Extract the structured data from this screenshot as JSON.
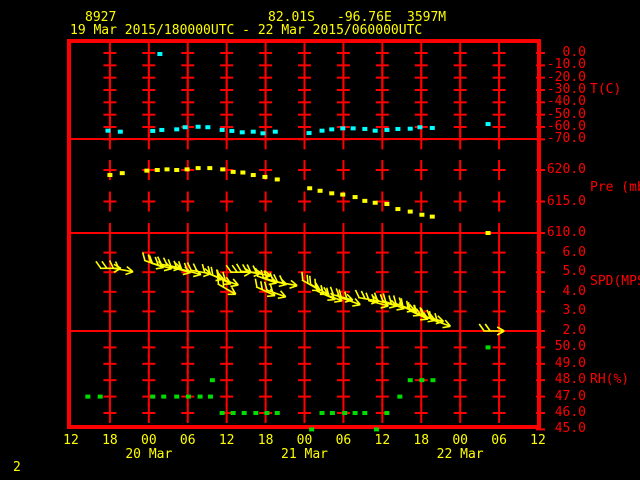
{
  "page_number": "2",
  "header": {
    "station_id": "8927",
    "latitude": "82.01S",
    "longitude": "-96.76E",
    "elevation": "3597M",
    "time_range": "19 Mar 2015/180000UTC - 22 Mar 2015/060000UTC"
  },
  "colors": {
    "background": "#000000",
    "grid": "#ff0000",
    "text_primary": "#ffff00",
    "temperature": "#00ffff",
    "pressure": "#ffff00",
    "wind": "#ffff00",
    "humidity": "#00dd00"
  },
  "chart_data": {
    "type": "scatter",
    "x_axis": {
      "hours_from_start": [
        0,
        6,
        12,
        18,
        24,
        30,
        36,
        42,
        48,
        54,
        60,
        66,
        72
      ],
      "hour_labels": [
        "12",
        "18",
        "00",
        "06",
        "12",
        "18",
        "00",
        "06",
        "12",
        "18",
        "00",
        "06",
        "12"
      ],
      "date_labels": [
        {
          "label": "20 Mar",
          "at_hour": 12
        },
        {
          "label": "21 Mar",
          "at_hour": 36
        },
        {
          "label": "22 Mar",
          "at_hour": 60
        }
      ]
    },
    "panels": [
      {
        "id": "temperature",
        "unit_label": "T(C)",
        "unit_label_at": -30,
        "ylim": [
          -70,
          10
        ],
        "tick_values": [
          0,
          -10,
          -20,
          -30,
          -40,
          -50,
          -60,
          -70
        ],
        "tick_labels": [
          "0.0",
          "-10.0",
          "-20.0",
          "-30.0",
          "-40.0",
          "-50.0",
          "-60.0",
          "-70.0"
        ],
        "grid_cross_values": [
          0,
          -10,
          -20,
          -30,
          -40,
          -50,
          -60,
          -70
        ],
        "color_key": "temperature",
        "points": [
          [
            5.7,
            -63.0
          ],
          [
            7.6,
            -63.8
          ],
          [
            12.6,
            -63.2
          ],
          [
            13.7,
            -0.8
          ],
          [
            14.0,
            -62.4
          ],
          [
            16.3,
            -61.9
          ],
          [
            17.6,
            -60.2
          ],
          [
            19.6,
            -59.8
          ],
          [
            21.1,
            -60.2
          ],
          [
            23.3,
            -62.4
          ],
          [
            24.8,
            -63.2
          ],
          [
            26.4,
            -64.3
          ],
          [
            28.1,
            -63.8
          ],
          [
            29.6,
            -65.1
          ],
          [
            31.5,
            -63.8
          ],
          [
            36.7,
            -64.9
          ],
          [
            38.7,
            -63.0
          ],
          [
            40.2,
            -61.9
          ],
          [
            41.9,
            -61.1
          ],
          [
            43.5,
            -61.1
          ],
          [
            45.3,
            -61.6
          ],
          [
            46.9,
            -63.0
          ],
          [
            48.7,
            -62.4
          ],
          [
            50.4,
            -61.6
          ],
          [
            52.3,
            -61.4
          ],
          [
            53.8,
            -60.2
          ],
          [
            55.7,
            -60.8
          ],
          [
            64.3,
            -57.6
          ]
        ]
      },
      {
        "id": "pressure",
        "unit_label": "Pre (mb)",
        "unit_label_at": 617.2,
        "ylim": [
          610,
          625
        ],
        "tick_values": [
          620,
          615,
          610
        ],
        "tick_labels": [
          "620.0",
          "615.0",
          "610.0"
        ],
        "grid_cross_values": [
          620,
          615,
          610
        ],
        "color_key": "pressure",
        "points": [
          [
            6.0,
            619.2
          ],
          [
            7.9,
            619.5
          ],
          [
            11.7,
            619.9
          ],
          [
            13.3,
            620.0
          ],
          [
            14.8,
            620.1
          ],
          [
            16.3,
            620.0
          ],
          [
            17.9,
            620.1
          ],
          [
            19.6,
            620.3
          ],
          [
            21.4,
            620.3
          ],
          [
            23.4,
            620.1
          ],
          [
            25.0,
            619.7
          ],
          [
            26.5,
            619.6
          ],
          [
            28.1,
            619.2
          ],
          [
            29.9,
            618.9
          ],
          [
            31.8,
            618.5
          ],
          [
            36.8,
            617.1
          ],
          [
            38.4,
            616.7
          ],
          [
            40.2,
            616.3
          ],
          [
            41.9,
            616.1
          ],
          [
            43.8,
            615.7
          ],
          [
            45.3,
            615.1
          ],
          [
            46.9,
            614.8
          ],
          [
            48.7,
            614.6
          ],
          [
            50.4,
            613.8
          ],
          [
            52.3,
            613.4
          ],
          [
            54.1,
            612.9
          ],
          [
            55.7,
            612.6
          ],
          [
            64.3,
            610.0
          ]
        ]
      },
      {
        "id": "wind_speed",
        "unit_label": "SPD(MPS)",
        "unit_label_at": 4.5,
        "ylim": [
          2,
          7
        ],
        "tick_values": [
          6,
          5,
          4,
          3,
          2
        ],
        "tick_labels": [
          "6.0",
          "5.0",
          "4.0",
          "3.0",
          "2.0"
        ],
        "grid_cross_values": [
          6,
          5,
          4,
          3,
          2
        ],
        "color_key": "wind",
        "barbs": [
          [
            6.3,
            5.2,
            0
          ],
          [
            8.2,
            5.1,
            10
          ],
          [
            13.0,
            5.4,
            20
          ],
          [
            14.2,
            5.3,
            15
          ],
          [
            15.6,
            5.3,
            10
          ],
          [
            17.1,
            5.1,
            15
          ],
          [
            18.7,
            5.0,
            15
          ],
          [
            20.2,
            5.0,
            10
          ],
          [
            22.2,
            4.8,
            20
          ],
          [
            23.4,
            4.6,
            25
          ],
          [
            24.2,
            4.1,
            30
          ],
          [
            24.5,
            4.5,
            20
          ],
          [
            26.4,
            5.0,
            0
          ],
          [
            27.9,
            5.0,
            5
          ],
          [
            29.4,
            4.9,
            10
          ],
          [
            30.2,
            4.0,
            25
          ],
          [
            30.4,
            4.6,
            20
          ],
          [
            31.8,
            3.9,
            20
          ],
          [
            31.9,
            4.5,
            15
          ],
          [
            33.5,
            4.4,
            10
          ],
          [
            37.2,
            4.3,
            30
          ],
          [
            38.4,
            4.1,
            30
          ],
          [
            39.5,
            3.8,
            25
          ],
          [
            40.5,
            3.7,
            20
          ],
          [
            42.1,
            3.7,
            15
          ],
          [
            43.3,
            3.5,
            20
          ],
          [
            46.1,
            3.6,
            10
          ],
          [
            47.6,
            3.4,
            15
          ],
          [
            48.9,
            3.4,
            15
          ],
          [
            50.1,
            3.3,
            20
          ],
          [
            51.7,
            3.2,
            20
          ],
          [
            52.7,
            3.0,
            25
          ],
          [
            53.8,
            2.8,
            25
          ],
          [
            54.9,
            2.7,
            20
          ],
          [
            56.1,
            2.6,
            15
          ],
          [
            57.2,
            2.4,
            20
          ],
          [
            65.4,
            2.0,
            0
          ]
        ]
      },
      {
        "id": "relative_humidity",
        "unit_label": "RH(%)",
        "unit_label_at": 48,
        "ylim": [
          45,
          51
        ],
        "tick_values": [
          50,
          49,
          48,
          47,
          46,
          45
        ],
        "tick_labels": [
          "50.0",
          "49.0",
          "48.0",
          "47.0",
          "46.0",
          "45.0"
        ],
        "grid_cross_values": [
          50,
          49,
          48,
          47,
          46
        ],
        "color_key": "humidity",
        "points": [
          [
            2.6,
            47
          ],
          [
            4.5,
            47
          ],
          [
            12.6,
            47
          ],
          [
            14.3,
            47
          ],
          [
            16.3,
            47
          ],
          [
            18.1,
            47
          ],
          [
            19.9,
            47
          ],
          [
            21.5,
            47
          ],
          [
            21.8,
            48
          ],
          [
            23.3,
            46
          ],
          [
            25.0,
            46
          ],
          [
            26.7,
            46
          ],
          [
            28.5,
            46
          ],
          [
            30.2,
            46
          ],
          [
            31.8,
            46
          ],
          [
            37.1,
            45
          ],
          [
            38.7,
            46
          ],
          [
            40.3,
            46
          ],
          [
            42.2,
            46
          ],
          [
            43.8,
            46
          ],
          [
            45.3,
            46
          ],
          [
            47.1,
            45
          ],
          [
            48.7,
            46
          ],
          [
            50.7,
            47
          ],
          [
            52.3,
            48
          ],
          [
            54.1,
            48
          ],
          [
            55.8,
            48
          ],
          [
            64.3,
            50
          ]
        ]
      }
    ]
  }
}
